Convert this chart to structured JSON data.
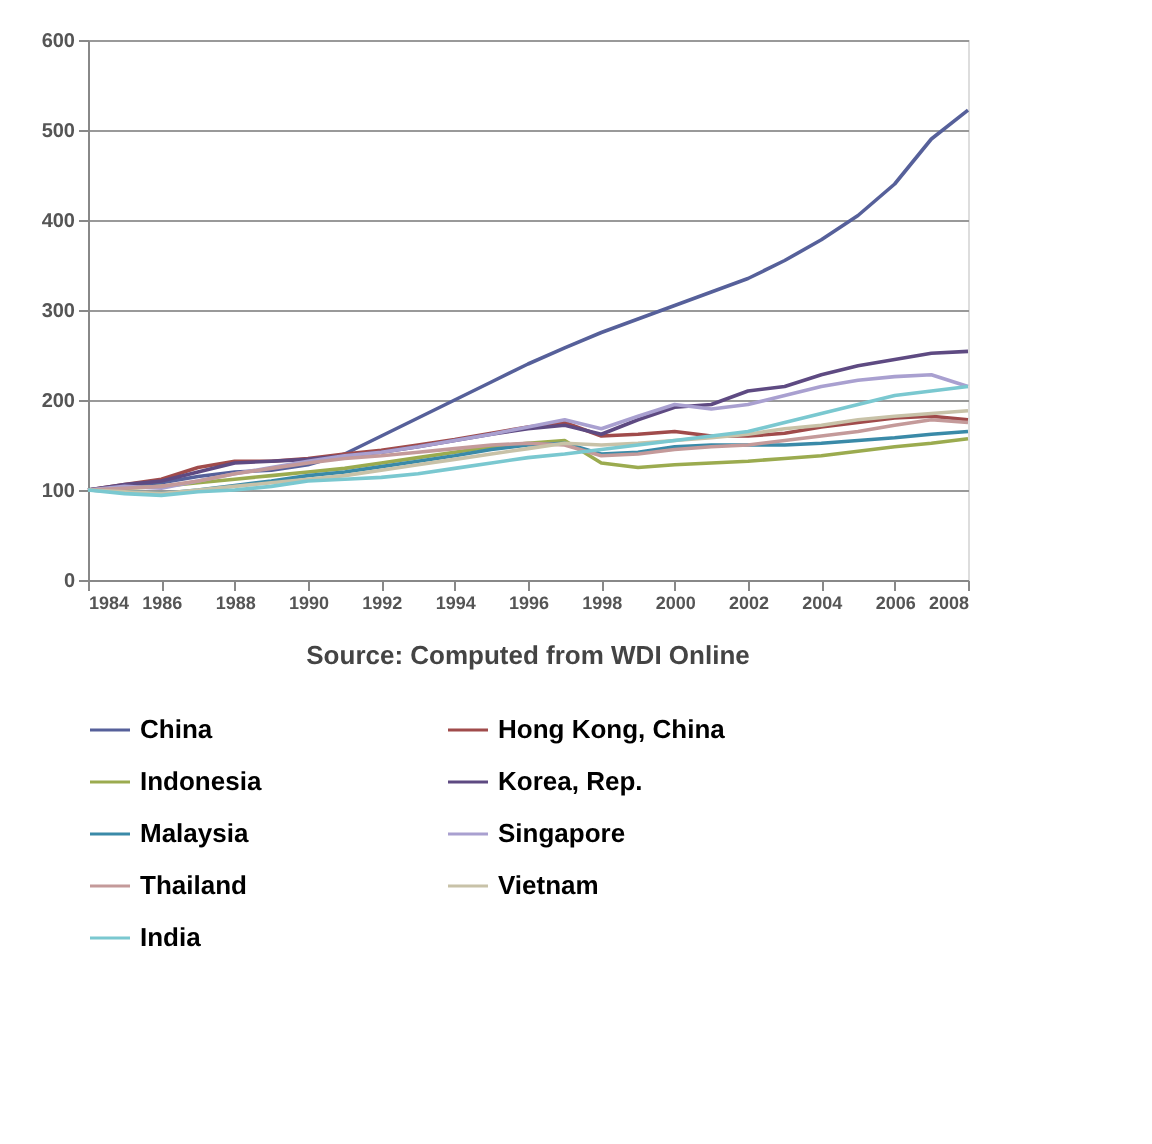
{
  "chart_data": {
    "type": "line",
    "x": [
      1984,
      1985,
      1986,
      1987,
      1988,
      1989,
      1990,
      1991,
      1992,
      1993,
      1994,
      1995,
      1996,
      1997,
      1998,
      1999,
      2000,
      2001,
      2002,
      2003,
      2004,
      2005,
      2006,
      2007,
      2008
    ],
    "series": [
      {
        "name": "China",
        "color": "#56609a",
        "values": [
          100,
          105,
          108,
          115,
          120,
          122,
          128,
          140,
          160,
          180,
          200,
          220,
          240,
          258,
          275,
          290,
          305,
          320,
          335,
          355,
          378,
          405,
          440,
          490,
          522
        ]
      },
      {
        "name": "Hong Kong, China",
        "color": "#a04b4b",
        "values": [
          100,
          106,
          112,
          125,
          132,
          132,
          135,
          140,
          144,
          150,
          156,
          163,
          170,
          175,
          160,
          162,
          165,
          160,
          160,
          163,
          170,
          175,
          180,
          182,
          178
        ]
      },
      {
        "name": "Indonesia",
        "color": "#9bab4f",
        "values": [
          100,
          102,
          104,
          108,
          112,
          116,
          120,
          124,
          130,
          136,
          142,
          148,
          152,
          155,
          130,
          125,
          128,
          130,
          132,
          135,
          138,
          143,
          148,
          152,
          157
        ]
      },
      {
        "name": "Korea, Rep.",
        "color": "#5e4a82",
        "values": [
          100,
          106,
          110,
          120,
          130,
          132,
          134,
          138,
          142,
          148,
          155,
          162,
          168,
          172,
          162,
          178,
          192,
          195,
          210,
          215,
          228,
          238,
          245,
          252,
          254
        ]
      },
      {
        "name": "Malaysia",
        "color": "#3a8aa8",
        "values": [
          100,
          98,
          96,
          100,
          105,
          110,
          116,
          120,
          126,
          132,
          138,
          145,
          150,
          152,
          140,
          142,
          148,
          150,
          150,
          150,
          152,
          155,
          158,
          162,
          165
        ]
      },
      {
        "name": "Singapore",
        "color": "#a9a0d0",
        "values": [
          100,
          104,
          102,
          110,
          118,
          125,
          132,
          138,
          142,
          148,
          155,
          162,
          170,
          178,
          168,
          182,
          195,
          190,
          195,
          205,
          215,
          222,
          226,
          228,
          215
        ]
      },
      {
        "name": "Thailand",
        "color": "#c49a9a",
        "values": [
          100,
          102,
          104,
          110,
          118,
          124,
          130,
          135,
          138,
          142,
          146,
          150,
          152,
          150,
          138,
          140,
          145,
          148,
          150,
          155,
          160,
          165,
          172,
          178,
          175
        ]
      },
      {
        "name": "Vietnam",
        "color": "#c8c2a8",
        "values": [
          100,
          98,
          96,
          100,
          104,
          108,
          112,
          116,
          122,
          128,
          134,
          140,
          146,
          152,
          150,
          152,
          155,
          158,
          162,
          168,
          172,
          178,
          182,
          185,
          188
        ]
      },
      {
        "name": "India",
        "color": "#7ac8d0",
        "values": [
          100,
          96,
          94,
          98,
          100,
          104,
          110,
          112,
          114,
          118,
          124,
          130,
          136,
          140,
          145,
          150,
          155,
          160,
          165,
          175,
          185,
          195,
          205,
          210,
          215
        ]
      }
    ],
    "xlim": [
      1984,
      2008
    ],
    "xticks": [
      1984,
      1986,
      1988,
      1990,
      1992,
      1994,
      1996,
      1998,
      2000,
      2002,
      2004,
      2006,
      2008
    ],
    "ylim": [
      0,
      600
    ],
    "yticks": [
      0,
      100,
      200,
      300,
      400,
      500,
      600
    ],
    "grid": "y",
    "legend": "bottom",
    "marker": "none",
    "line_style": "solid",
    "annotations": [
      "Source: Computed from WDI Online"
    ]
  }
}
